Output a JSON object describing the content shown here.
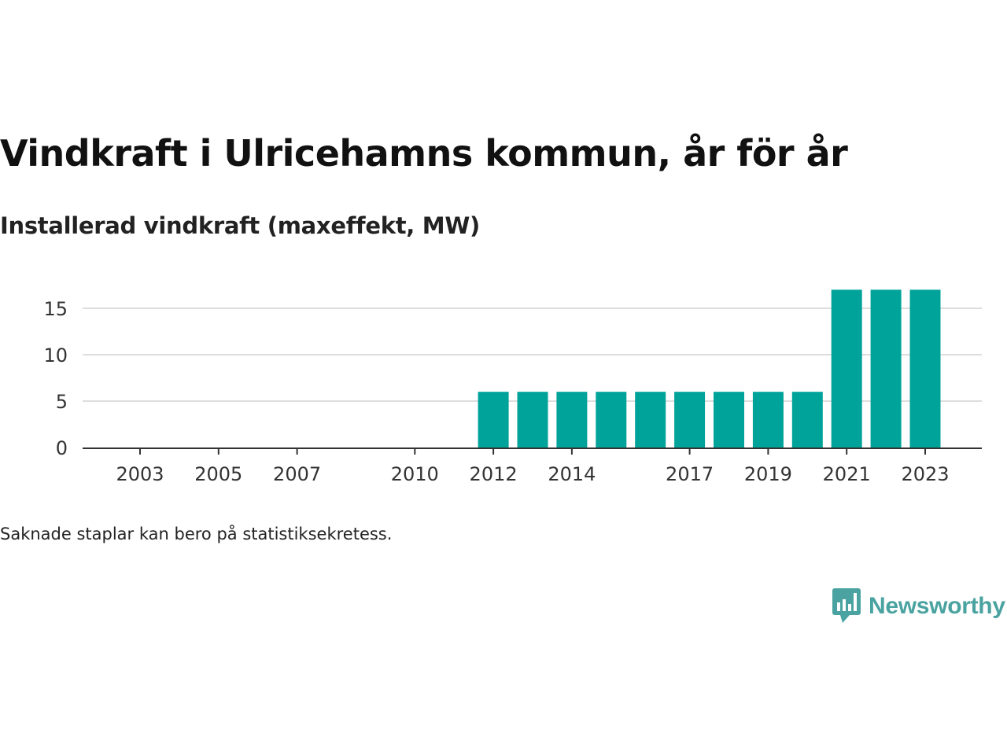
{
  "title": "Vindkraft i Ulricehamns kommun, år för år",
  "subtitle": "Installerad vindkraft (maxeffekt, MW)",
  "footnote": "Saknade staplar kan bero på statistiksekretess.",
  "brand": {
    "name": "Newsworthy",
    "icon": "newsworthy-logo-icon",
    "color": "#4aa3a0"
  },
  "chart_data": {
    "type": "bar",
    "bar_color": "#00a39a",
    "categories": [
      "2003",
      "2004",
      "2005",
      "2006",
      "2007",
      "2008",
      "2009",
      "2010",
      "2011",
      "2012",
      "2013",
      "2014",
      "2015",
      "2016",
      "2017",
      "2018",
      "2019",
      "2020",
      "2021",
      "2022",
      "2023"
    ],
    "values": [
      0,
      0,
      0,
      0,
      0,
      0,
      0,
      0,
      0,
      6,
      6,
      6,
      6,
      6,
      6,
      6,
      6,
      6,
      17,
      17,
      17
    ],
    "x_tick_labels": [
      "2003",
      "2005",
      "2007",
      "2010",
      "2012",
      "2014",
      "2017",
      "2019",
      "2021",
      "2023"
    ],
    "y_ticks": [
      0,
      5,
      10,
      15
    ],
    "ylim": [
      0,
      17
    ],
    "grid": true,
    "xlabel": "",
    "ylabel": ""
  }
}
